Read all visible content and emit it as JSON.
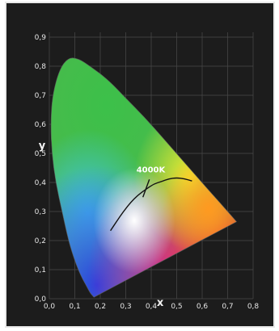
{
  "chart_data": {
    "type": "scatter",
    "xlabel": "x",
    "ylabel": "y",
    "xlim": [
      0.0,
      0.8
    ],
    "ylim": [
      0.0,
      0.9
    ],
    "grid": true,
    "x_ticks": [
      "0,0",
      "0,1",
      "0,2",
      "0,3",
      "0,4",
      "0,5",
      "0,6",
      "0,7",
      "0,8"
    ],
    "y_ticks": [
      "0,0",
      "0,1",
      "0,2",
      "0,3",
      "0,4",
      "0,5",
      "0,6",
      "0,7",
      "0,8",
      "0,9"
    ],
    "spectral_locus": [
      [
        0.175,
        0.005
      ],
      [
        0.17,
        0.01
      ],
      [
        0.16,
        0.02
      ],
      [
        0.145,
        0.045
      ],
      [
        0.124,
        0.078
      ],
      [
        0.1,
        0.13
      ],
      [
        0.075,
        0.2
      ],
      [
        0.05,
        0.3
      ],
      [
        0.025,
        0.4
      ],
      [
        0.01,
        0.5
      ],
      [
        0.005,
        0.6
      ],
      [
        0.012,
        0.7
      ],
      [
        0.04,
        0.79
      ],
      [
        0.075,
        0.83
      ],
      [
        0.115,
        0.826
      ],
      [
        0.16,
        0.8
      ],
      [
        0.23,
        0.754
      ],
      [
        0.3,
        0.69
      ],
      [
        0.373,
        0.625
      ],
      [
        0.444,
        0.555
      ],
      [
        0.512,
        0.487
      ],
      [
        0.575,
        0.424
      ],
      [
        0.627,
        0.372
      ],
      [
        0.666,
        0.334
      ],
      [
        0.692,
        0.308
      ],
      [
        0.735,
        0.265
      ]
    ],
    "planckian_locus": [
      [
        0.24,
        0.234
      ],
      [
        0.265,
        0.267
      ],
      [
        0.29,
        0.299
      ],
      [
        0.318,
        0.33
      ],
      [
        0.347,
        0.356
      ],
      [
        0.38,
        0.377
      ],
      [
        0.41,
        0.395
      ],
      [
        0.44,
        0.403
      ],
      [
        0.47,
        0.413
      ],
      [
        0.5,
        0.416
      ],
      [
        0.53,
        0.413
      ],
      [
        0.56,
        0.405
      ]
    ],
    "annotations": [
      {
        "label": "4000K",
        "x": 0.38,
        "y": 0.377
      }
    ]
  }
}
